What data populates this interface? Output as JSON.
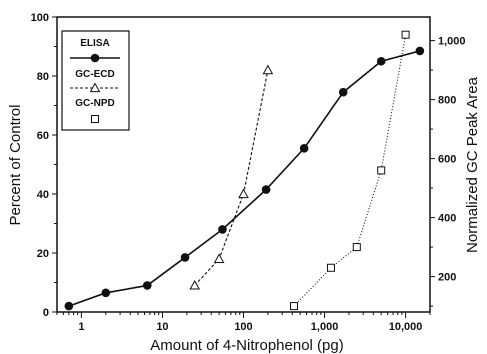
{
  "chart_data": {
    "type": "line",
    "x_scale": "log",
    "xlabel": "Amount of 4-Nitrophenol (pg)",
    "ylabel_left": "Percent of Control",
    "ylabel_right": "Normalized GC Peak Area",
    "xlim": [
      0.5,
      20000
    ],
    "ylim_left": [
      0,
      100
    ],
    "ylim_right": [
      80,
      1080
    ],
    "x_tick_labels": [
      "1",
      "10",
      "100",
      "1,000",
      "10,000"
    ],
    "x_tick_values": [
      1,
      10,
      100,
      1000,
      10000
    ],
    "y_left_tick_labels": [
      "0",
      "20",
      "40",
      "60",
      "80",
      "100"
    ],
    "y_left_tick_values": [
      0,
      20,
      40,
      60,
      80,
      100
    ],
    "y_right_tick_labels": [
      "200",
      "400",
      "600",
      "800",
      "1,000"
    ],
    "y_right_tick_values": [
      200,
      400,
      600,
      800,
      1000
    ],
    "grid": false,
    "legend_placement": "top-left",
    "series": [
      {
        "name": "ELISA",
        "axis": "left",
        "marker": "filled-circle",
        "line": "solid",
        "color": "#111111",
        "x": [
          0.7,
          2,
          6.5,
          19,
          55,
          190,
          560,
          1700,
          5000,
          15000
        ],
        "y": [
          2,
          6.5,
          9,
          18.5,
          28,
          41.5,
          55.5,
          74.5,
          85,
          88.5
        ]
      },
      {
        "name": "GC-ECD",
        "axis": "right",
        "marker": "open-triangle",
        "line": "dashed",
        "color": "#111111",
        "x": [
          25,
          50,
          100,
          200
        ],
        "y": [
          170,
          260,
          480,
          900
        ]
      },
      {
        "name": "GC-NPD",
        "axis": "right",
        "marker": "open-square",
        "line": "dotted",
        "color": "#111111",
        "x": [
          420,
          1200,
          2500,
          5000,
          10000
        ],
        "y": [
          100,
          230,
          300,
          560,
          1020
        ]
      }
    ]
  }
}
